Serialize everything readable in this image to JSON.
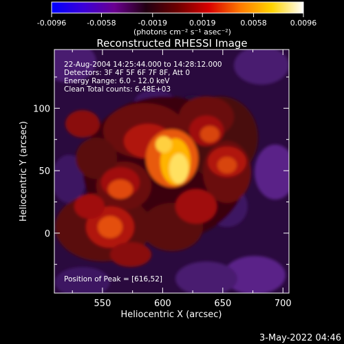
{
  "colorbar": {
    "tick_labels": [
      "-0.0096",
      "-0.0058",
      "-0.0019",
      "0.0019",
      "0.0058",
      "0.0096"
    ],
    "units": "(photons cm⁻² s⁻¹ asec⁻²)",
    "range": [
      -0.0096,
      0.0096
    ],
    "colors": [
      "#0000ff",
      "#3b00d9",
      "#6a0090",
      "#220012",
      "#6e0000",
      "#d80000",
      "#ff7a00",
      "#ffd400",
      "#ffffff"
    ]
  },
  "image": {
    "title": "Reconstructed RHESSI Image",
    "annotations": [
      "22-Aug-2004 14:25:44.000 to 14:28:12.000",
      "Detectors: 3F 4F 5F 6F 7F 8F, Att 0",
      "Energy Range: 6.0 - 12.0 keV",
      "Clean     Total counts: 6.48E+03"
    ],
    "peak_text": "Position of Peak = [616,52]",
    "xlabel": "Heliocentric X (arcsec)",
    "ylabel": "Heliocentric Y (arcsec)",
    "x_ticks": [
      "550",
      "600",
      "650",
      "700"
    ],
    "y_ticks": [
      "100",
      "50",
      "0"
    ],
    "x_range": [
      510,
      705
    ],
    "y_range": [
      -48,
      147
    ],
    "peak": [
      616,
      52
    ]
  },
  "footer": {
    "timestamp": "3-May-2022 04:46"
  }
}
